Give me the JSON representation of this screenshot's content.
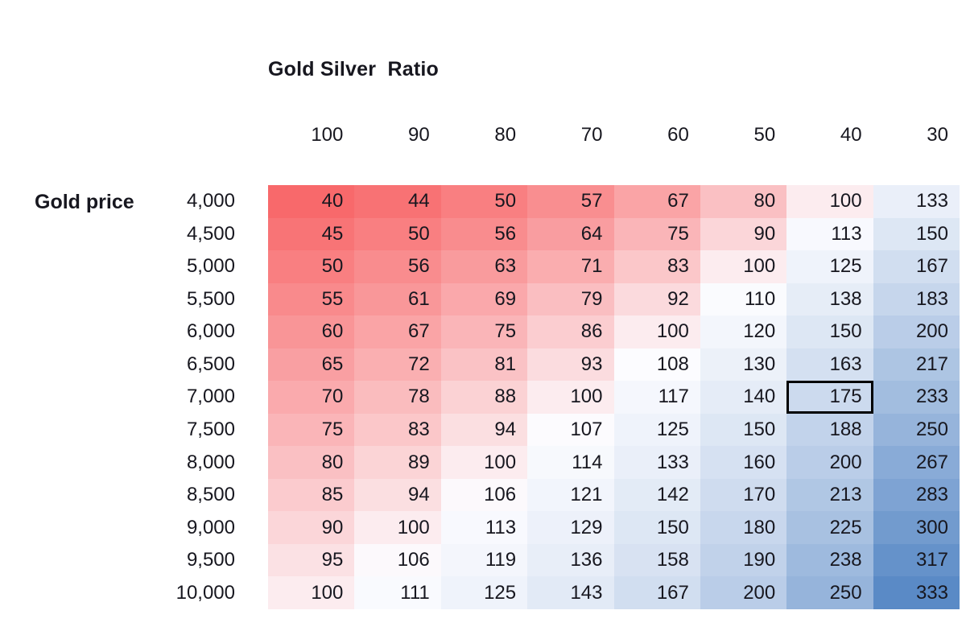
{
  "title": "Gold Silver  Ratio",
  "row_axis_label": "Gold price",
  "chart_data": {
    "type": "heatmap",
    "title": "Gold Silver Ratio",
    "x_axis_label": "Gold Silver Ratio",
    "y_axis_label": "Gold price",
    "columns": [
      "100",
      "90",
      "80",
      "70",
      "60",
      "50",
      "40",
      "30"
    ],
    "rows": [
      "4,000",
      "4,500",
      "5,000",
      "5,500",
      "6,000",
      "6,500",
      "7,000",
      "7,500",
      "8,000",
      "8,500",
      "9,000",
      "9,500",
      "10,000"
    ],
    "values": [
      [
        40,
        44,
        50,
        57,
        67,
        80,
        100,
        133
      ],
      [
        45,
        50,
        56,
        64,
        75,
        90,
        113,
        150
      ],
      [
        50,
        56,
        63,
        71,
        83,
        100,
        125,
        167
      ],
      [
        55,
        61,
        69,
        79,
        92,
        110,
        138,
        183
      ],
      [
        60,
        67,
        75,
        86,
        100,
        120,
        150,
        200
      ],
      [
        65,
        72,
        81,
        93,
        108,
        130,
        163,
        217
      ],
      [
        70,
        78,
        88,
        100,
        117,
        140,
        175,
        233
      ],
      [
        75,
        83,
        94,
        107,
        125,
        150,
        188,
        250
      ],
      [
        80,
        89,
        100,
        114,
        133,
        160,
        200,
        267
      ],
      [
        85,
        94,
        106,
        121,
        142,
        170,
        213,
        283
      ],
      [
        90,
        100,
        113,
        129,
        150,
        180,
        225,
        300
      ],
      [
        95,
        106,
        119,
        136,
        158,
        190,
        238,
        317
      ],
      [
        100,
        111,
        125,
        143,
        167,
        200,
        250,
        333
      ]
    ],
    "color_scale": {
      "type": "diverging",
      "min_value": 40,
      "mid_value": 107.5,
      "max_value": 333,
      "min_color": "#F8696B",
      "mid_color": "#FCFCFF",
      "max_color": "#5A8AC6"
    },
    "selected_cell": {
      "row_label": "7,000",
      "column_label": "40",
      "value": 175,
      "row_index": 6,
      "col_index": 6,
      "border_color": "#000000"
    },
    "legend": "none",
    "grid": false
  }
}
